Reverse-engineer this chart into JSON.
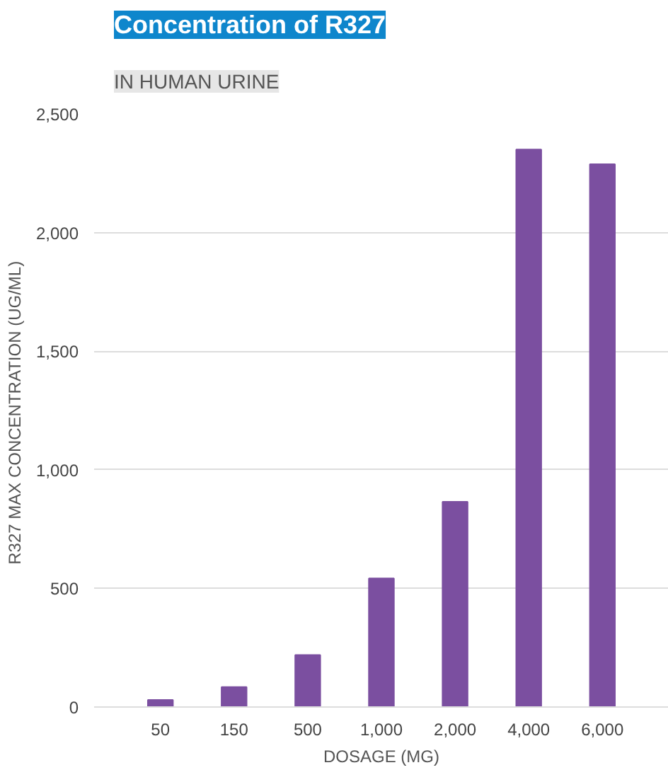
{
  "chart_data": {
    "type": "bar",
    "title": "Concentration of R327",
    "subtitle": "IN HUMAN URINE",
    "xlabel": "DOSAGE (MG)",
    "ylabel": "R327 MAX CONCENTRATION  (UG/ML)",
    "categories": [
      "50",
      "150",
      "500",
      "1,000",
      "2,000",
      "4,000",
      "6,000"
    ],
    "values": [
      30,
      84,
      219,
      542,
      865,
      2350,
      2288
    ],
    "color": "#7b4fa0",
    "ylim": [
      0,
      2500
    ],
    "yticks": [
      {
        "value": 0,
        "label": "0"
      },
      {
        "value": 500,
        "label": "500"
      },
      {
        "value": 1000,
        "label": "1,000"
      },
      {
        "value": 1500,
        "label": "1,500"
      },
      {
        "value": 2000,
        "label": "2,000"
      },
      {
        "value": 2500,
        "label": "2,500"
      }
    ],
    "grid": "y"
  }
}
